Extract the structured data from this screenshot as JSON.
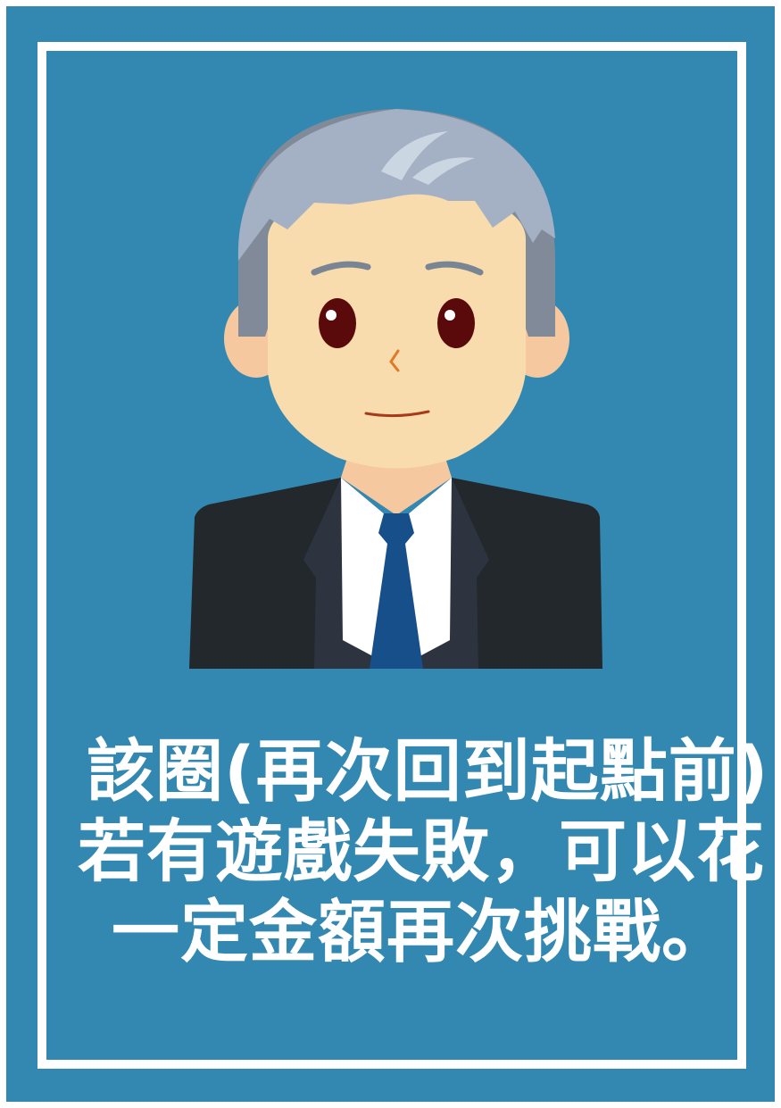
{
  "poster": {
    "background_color": "#3388b2",
    "frame_color": "#ffffff",
    "illustration": "businessman-avatar",
    "message_lines": [
      "該圈(再次回到起點前)",
      "若有遊戲失敗，可以花",
      "一定金額再次挑戰。"
    ]
  }
}
